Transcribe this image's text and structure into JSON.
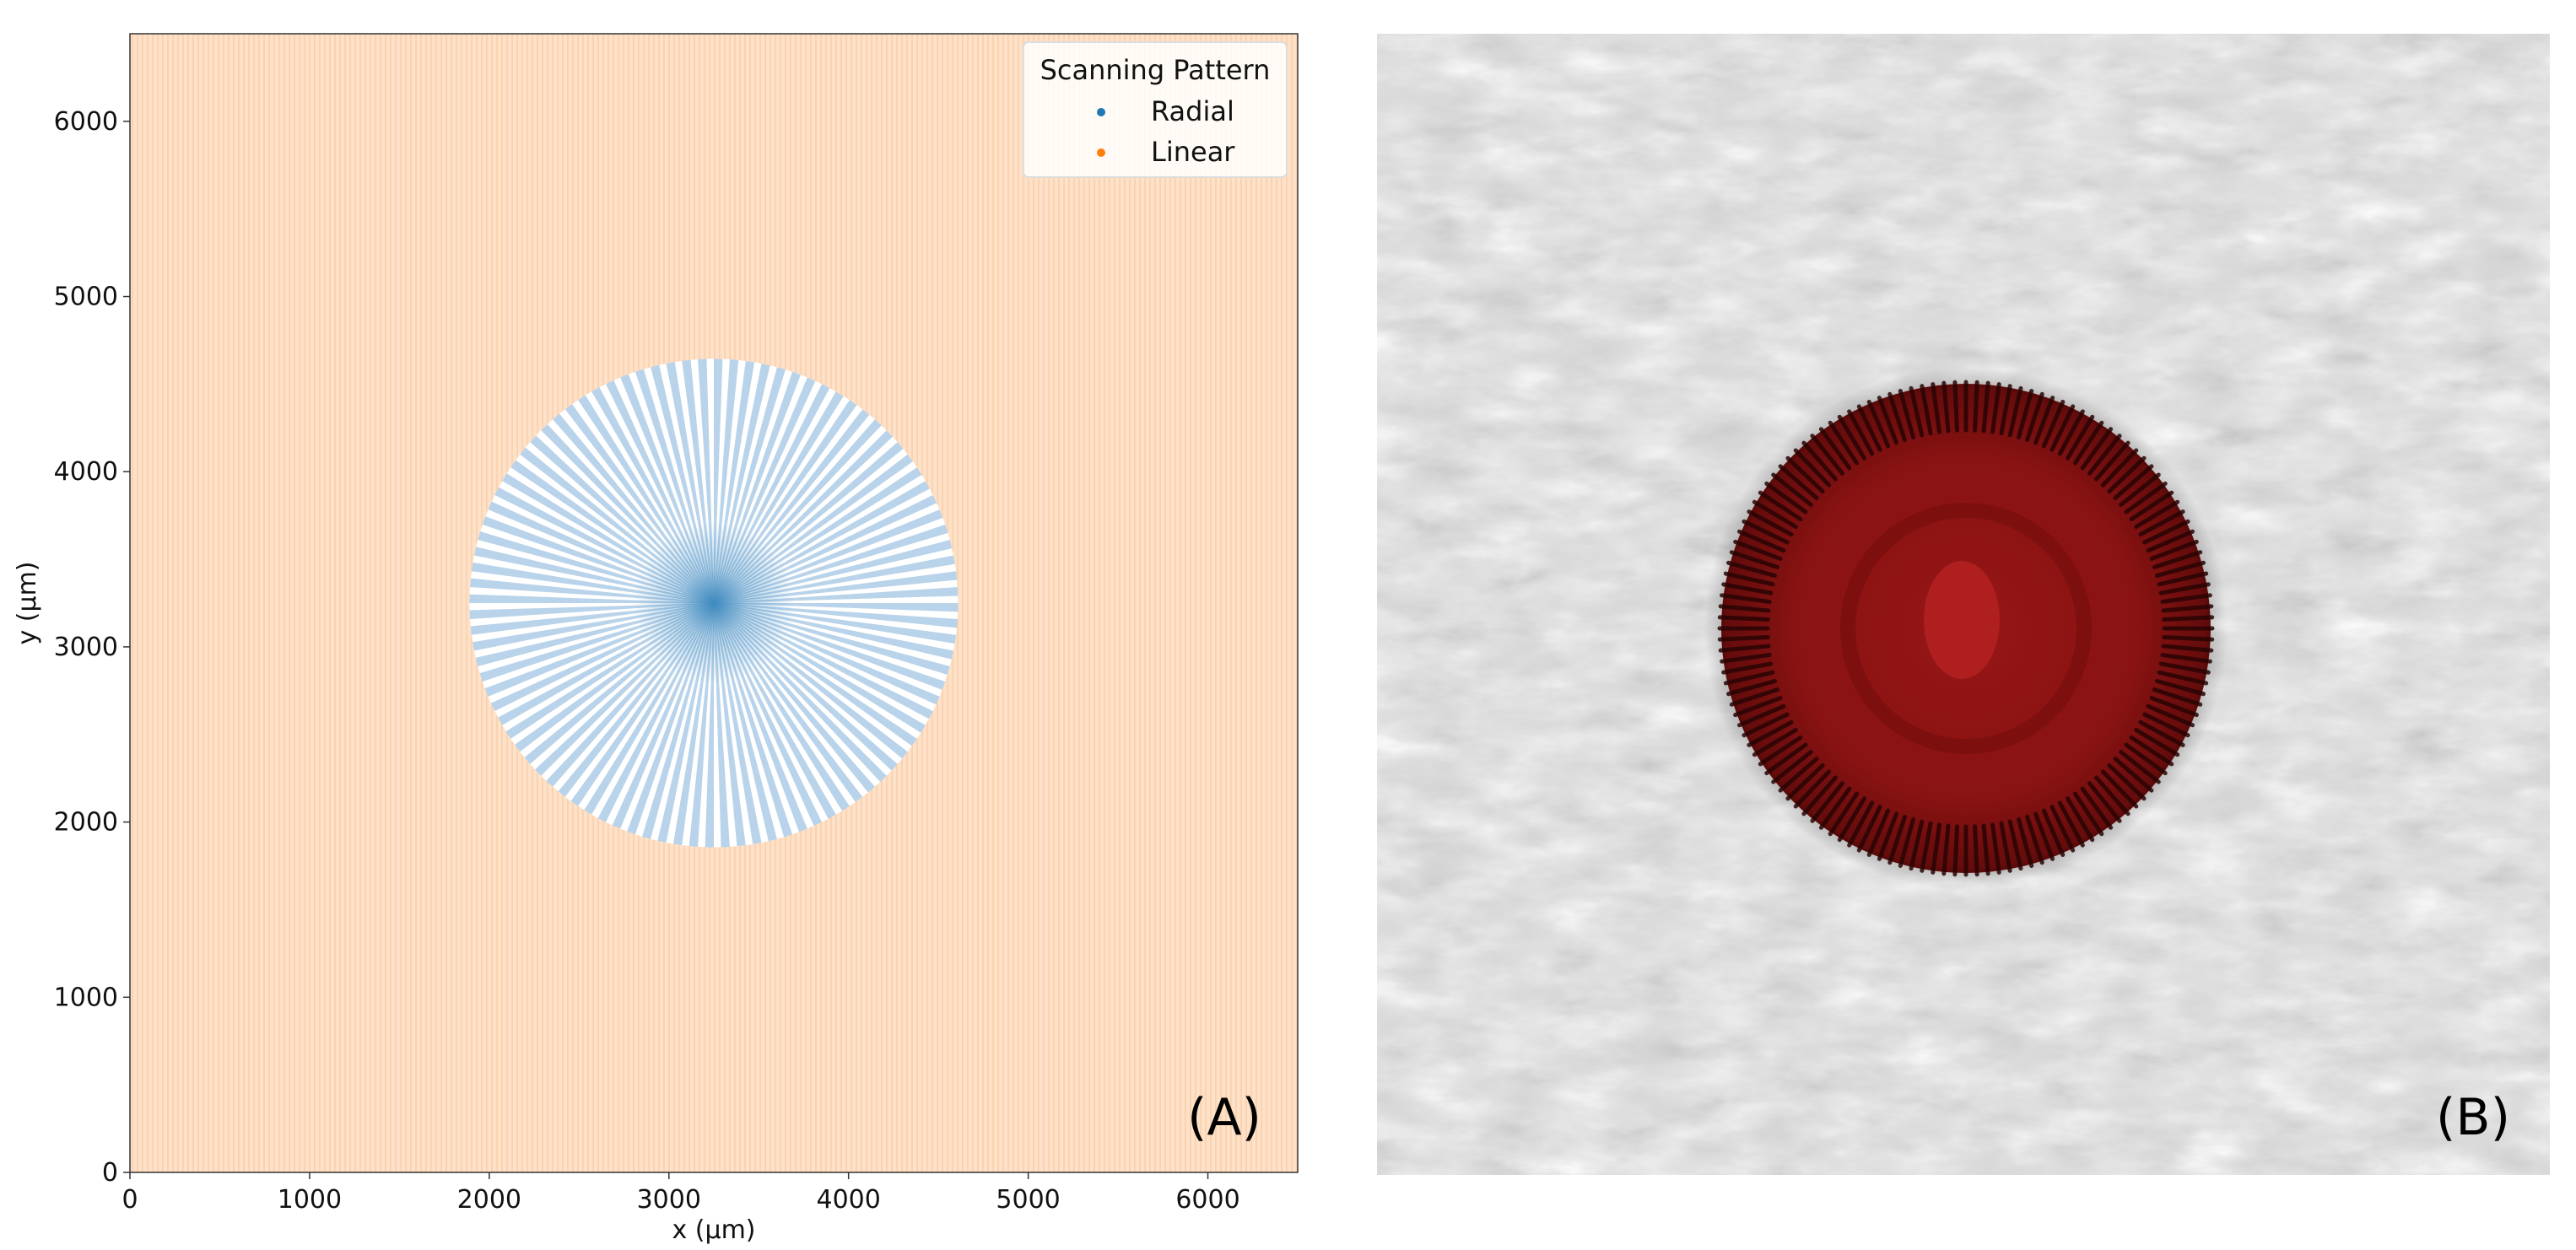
{
  "chart_data": [
    {
      "type": "scatter",
      "xlabel": "x (µm)",
      "ylabel": "y (µm)",
      "xlim": [
        0,
        6500
      ],
      "ylim": [
        0,
        6500
      ],
      "xticks": [
        0,
        1000,
        2000,
        3000,
        4000,
        5000,
        6000
      ],
      "yticks": [
        0,
        1000,
        2000,
        3000,
        4000,
        5000,
        6000
      ],
      "grid": false,
      "legend": {
        "title": "Scanning Pattern",
        "placement": "top-right"
      },
      "series": [
        {
          "name": "Radial",
          "color": "#1f77b4",
          "pattern": "radial",
          "center": [
            3250,
            3250
          ],
          "radius": 1360,
          "lines": 96
        },
        {
          "name": "Linear",
          "color": "#ff7f0e",
          "pattern": "linear",
          "x_range": [
            0,
            6500
          ],
          "y_range": [
            0,
            6500
          ],
          "spacing": 25
        }
      ],
      "panel_label": "(A)"
    },
    {
      "type": "image",
      "panel_label": "(B)",
      "description_colors": {
        "background": "#d8d8d8",
        "lesion": "#8e1414"
      }
    }
  ]
}
